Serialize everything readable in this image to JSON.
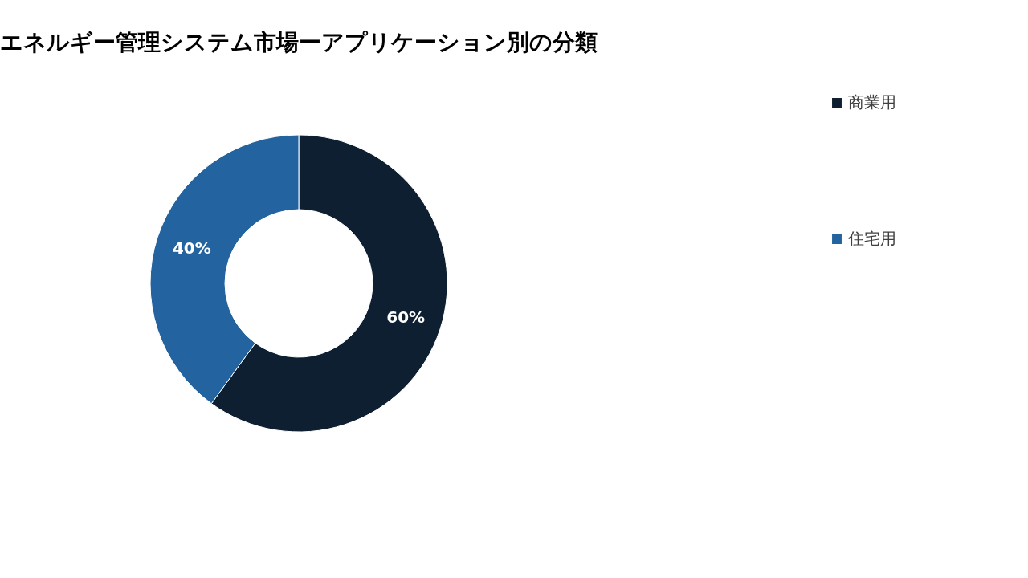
{
  "chart_data": {
    "type": "donut",
    "title": "エネルギー管理システム市場ーアプリケーション別の分類",
    "categories": [
      "商業用",
      "住宅用"
    ],
    "values": [
      60,
      40
    ],
    "colors": [
      "#0d1f30",
      "#2364a0"
    ],
    "value_labels": [
      "60%",
      "40%"
    ],
    "legend": "right"
  }
}
